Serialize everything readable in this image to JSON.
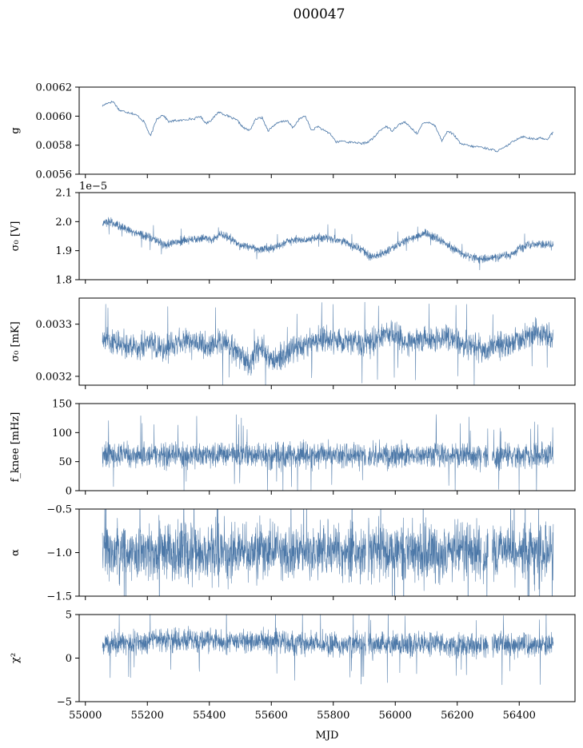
{
  "figure": {
    "title": "000047",
    "line_color": "#4c78a8",
    "background": "#ffffff"
  },
  "chart_data": [
    {
      "type": "line",
      "ylabel": "g",
      "xlim": [
        54980,
        56580
      ],
      "ylim": [
        0.0056,
        0.0062
      ],
      "yticks": [
        0.0056,
        0.0058,
        0.006,
        0.0062
      ],
      "ytick_labels": [
        "0.0056",
        "0.0058",
        "0.0060",
        "0.0062"
      ],
      "show_xtick_labels": false,
      "series": [
        {
          "x": [
            55055,
            55070,
            55090,
            55110,
            55130,
            55150,
            55170,
            55190,
            55210,
            55230,
            55250,
            55270,
            55290,
            55310,
            55330,
            55350,
            55370,
            55390,
            55410,
            55430,
            55450,
            55470,
            55490,
            55510,
            55530,
            55550,
            55570,
            55590,
            55610,
            55630,
            55650,
            55670,
            55690,
            55710,
            55730,
            55750,
            55770,
            55790,
            55810,
            55830,
            55850,
            55870,
            55890,
            55910,
            55930,
            55950,
            55970,
            55990,
            56010,
            56030,
            56050,
            56070,
            56090,
            56110,
            56130,
            56150,
            56170,
            56190,
            56210,
            56230,
            56250,
            56270,
            56290,
            56310,
            56330,
            56350,
            56370,
            56390,
            56410,
            56430,
            56450,
            56470,
            56490,
            56510
          ],
          "y": [
            0.00607,
            0.00609,
            0.0061,
            0.00604,
            0.00603,
            0.00602,
            0.006,
            0.00596,
            0.00586,
            0.00598,
            0.00601,
            0.00596,
            0.00597,
            0.00597,
            0.00598,
            0.00598,
            0.006,
            0.00595,
            0.00598,
            0.00603,
            0.00601,
            0.00599,
            0.00597,
            0.00592,
            0.0059,
            0.00598,
            0.00599,
            0.0059,
            0.00594,
            0.00596,
            0.00597,
            0.00592,
            0.00598,
            0.006,
            0.0059,
            0.00593,
            0.0059,
            0.00588,
            0.00582,
            0.00583,
            0.00582,
            0.00582,
            0.00581,
            0.00582,
            0.00585,
            0.0059,
            0.00593,
            0.0059,
            0.00594,
            0.00596,
            0.00592,
            0.00588,
            0.00595,
            0.00596,
            0.00593,
            0.00583,
            0.0059,
            0.00587,
            0.00581,
            0.0058,
            0.00579,
            0.00579,
            0.00578,
            0.00577,
            0.00576,
            0.00578,
            0.00581,
            0.00584,
            0.00586,
            0.00585,
            0.00584,
            0.00585,
            0.00584,
            0.00589
          ]
        }
      ]
    },
    {
      "type": "line",
      "ylabel": "σ₀ [V]",
      "offset_text": "1e−5",
      "xlim": [
        54980,
        56580
      ],
      "ylim": [
        1.8,
        2.1
      ],
      "yticks": [
        1.8,
        1.9,
        2.0,
        2.1
      ],
      "ytick_labels": [
        "1.8",
        "1.9",
        "2.0",
        "2.1"
      ],
      "show_xtick_labels": false,
      "band_halfwidth": 0.013,
      "series": [
        {
          "x": [
            55055,
            55080,
            55110,
            55140,
            55170,
            55200,
            55230,
            55260,
            55290,
            55320,
            55350,
            55380,
            55410,
            55440,
            55470,
            55500,
            55530,
            55560,
            55590,
            55620,
            55650,
            55680,
            55710,
            55740,
            55770,
            55800,
            55830,
            55860,
            55890,
            55920,
            55950,
            55980,
            56010,
            56040,
            56070,
            56100,
            56130,
            56160,
            56190,
            56220,
            56250,
            56280,
            56310,
            56340,
            56370,
            56400,
            56430,
            56460,
            56490,
            56510
          ],
          "y": [
            1.995,
            2.0,
            1.985,
            1.97,
            1.958,
            1.95,
            1.935,
            1.92,
            1.928,
            1.935,
            1.94,
            1.942,
            1.938,
            1.955,
            1.94,
            1.918,
            1.912,
            1.906,
            1.908,
            1.915,
            1.93,
            1.94,
            1.935,
            1.943,
            1.945,
            1.938,
            1.935,
            1.915,
            1.905,
            1.878,
            1.885,
            1.905,
            1.92,
            1.938,
            1.95,
            1.96,
            1.945,
            1.925,
            1.905,
            1.888,
            1.877,
            1.872,
            1.875,
            1.88,
            1.886,
            1.908,
            1.918,
            1.922,
            1.92,
            1.918
          ]
        }
      ]
    },
    {
      "type": "line",
      "ylabel": "σ₀ [mK]",
      "xlim": [
        54980,
        56580
      ],
      "ylim": [
        0.003183,
        0.00335
      ],
      "yticks": [
        0.0032,
        0.0033
      ],
      "ytick_labels": [
        "0.0032",
        "0.0033"
      ],
      "show_xtick_labels": false,
      "band_halfwidth": 2.2e-05,
      "series": [
        {
          "x": [
            55055,
            55090,
            55130,
            55170,
            55210,
            55250,
            55290,
            55330,
            55370,
            55410,
            55450,
            55490,
            55530,
            55570,
            55610,
            55650,
            55690,
            55730,
            55770,
            55810,
            55850,
            55890,
            55930,
            55970,
            56010,
            56050,
            56090,
            56130,
            56170,
            56210,
            56250,
            56290,
            56330,
            56370,
            56410,
            56450,
            56490,
            56510
          ],
          "y": [
            0.00327,
            0.003262,
            0.003258,
            0.003256,
            0.003268,
            0.00325,
            0.003262,
            0.003266,
            0.003262,
            0.00326,
            0.003262,
            0.003245,
            0.003228,
            0.003258,
            0.003224,
            0.003245,
            0.003258,
            0.003268,
            0.003272,
            0.003265,
            0.00327,
            0.003262,
            0.003268,
            0.003285,
            0.003275,
            0.003266,
            0.003272,
            0.00327,
            0.003275,
            0.003262,
            0.00326,
            0.003248,
            0.003258,
            0.003264,
            0.003272,
            0.003282,
            0.003276,
            0.003268
          ]
        }
      ]
    },
    {
      "type": "line",
      "ylabel": "f_knee [mHz]",
      "xlim": [
        54980,
        56580
      ],
      "ylim": [
        0,
        150
      ],
      "yticks": [
        0,
        50,
        100,
        150
      ],
      "ytick_labels": [
        "0",
        "50",
        "100",
        "150"
      ],
      "show_xtick_labels": false,
      "band_halfwidth": 19,
      "gaps": [
        [
          55905,
          55912
        ],
        [
          56278,
          56283
        ],
        [
          56300,
          56312
        ]
      ],
      "series": [
        {
          "x": [
            55055,
            55150,
            55250,
            55350,
            55450,
            55550,
            55650,
            55750,
            55850,
            55950,
            56050,
            56150,
            56250,
            56350,
            56450,
            56510
          ],
          "y": [
            60,
            62,
            61,
            60,
            63,
            61,
            60,
            62,
            60,
            61,
            61,
            62,
            60,
            60,
            60,
            60
          ]
        }
      ]
    },
    {
      "type": "line",
      "ylabel": "α",
      "xlim": [
        54980,
        56580
      ],
      "ylim": [
        -1.5,
        -0.5
      ],
      "yticks": [
        -1.5,
        -1.0,
        -0.5
      ],
      "ytick_labels": [
        "−1.5",
        "−1.0",
        "−0.5"
      ],
      "show_xtick_labels": false,
      "band_halfwidth": 0.3,
      "gaps": [
        [
          55905,
          55912
        ],
        [
          56278,
          56283
        ],
        [
          56300,
          56312
        ]
      ],
      "series": [
        {
          "x": [
            55055,
            55150,
            55250,
            55350,
            55450,
            55550,
            55650,
            55750,
            55850,
            55950,
            56050,
            56150,
            56250,
            56350,
            56450,
            56510
          ],
          "y": [
            -1.0,
            -1.0,
            -1.0,
            -1.0,
            -1.0,
            -1.0,
            -1.0,
            -1.0,
            -1.0,
            -1.0,
            -1.0,
            -1.0,
            -1.0,
            -1.0,
            -1.0,
            -1.0
          ]
        }
      ]
    },
    {
      "type": "line",
      "ylabel": "χ²",
      "xlabel": "MJD",
      "xlim": [
        54980,
        56580
      ],
      "ylim": [
        -5,
        5
      ],
      "yticks": [
        -5,
        0,
        5
      ],
      "ytick_labels": [
        "−5",
        "0",
        "5"
      ],
      "xticks": [
        55000,
        55200,
        55400,
        55600,
        55800,
        56000,
        56200,
        56400
      ],
      "xtick_labels": [
        "55000",
        "55200",
        "55400",
        "55600",
        "55800",
        "56000",
        "56200",
        "56400"
      ],
      "show_xtick_labels": true,
      "band_halfwidth": 1.25,
      "gaps": [
        [
          55905,
          55912
        ],
        [
          56278,
          56283
        ],
        [
          56300,
          56312
        ]
      ],
      "series": [
        {
          "x": [
            55055,
            55150,
            55250,
            55350,
            55450,
            55550,
            55650,
            55750,
            55850,
            55950,
            56050,
            56150,
            56250,
            56350,
            56450,
            56510
          ],
          "y": [
            1.6,
            1.8,
            2.0,
            2.1,
            2.0,
            1.9,
            1.8,
            1.7,
            1.6,
            1.6,
            1.7,
            1.6,
            1.5,
            1.5,
            1.5,
            1.5
          ]
        }
      ]
    }
  ]
}
